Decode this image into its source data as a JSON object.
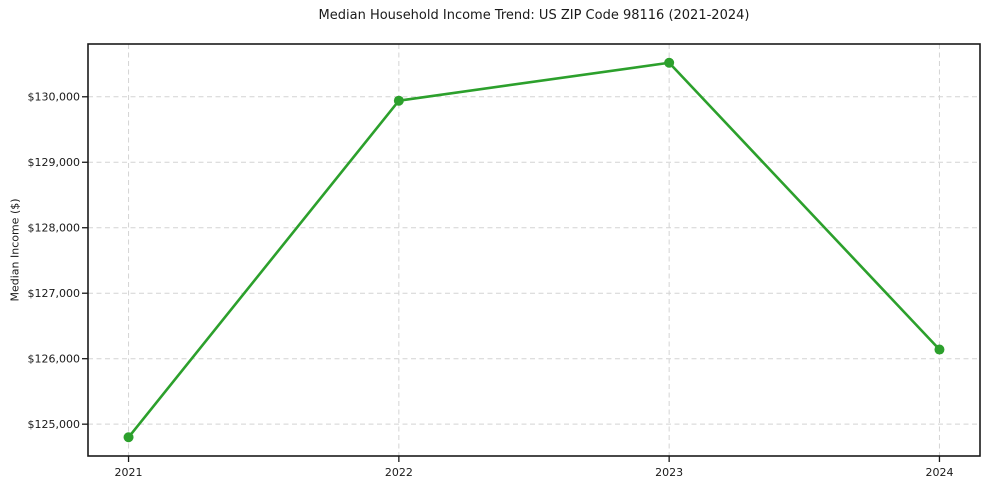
{
  "chart_data": {
    "type": "line",
    "title": "Median Household Income Trend: US ZIP Code 98116 (2021-2024)",
    "xlabel": "",
    "ylabel": "Median Income ($)",
    "x": [
      2021,
      2022,
      2023,
      2024
    ],
    "values": [
      124800,
      129940,
      130520,
      126140
    ],
    "value_labels": [
      "$124,800",
      "$129,940",
      "$130,520",
      "$126,140"
    ],
    "xticks": [
      2021,
      2022,
      2023,
      2024
    ],
    "xtick_labels": [
      "2021",
      "2022",
      "2023",
      "2024"
    ],
    "yticks": [
      125000,
      126000,
      127000,
      128000,
      129000,
      130000
    ],
    "ytick_labels": [
      "$125,000",
      "$126,000",
      "$127,000",
      "$128,000",
      "$129,000",
      "$130,000"
    ],
    "xlim": [
      2020.85,
      2024.15
    ],
    "ylim": [
      124514,
      130806
    ],
    "grid": true,
    "grid_style": "dashed",
    "legend": "none",
    "line_color": "#2ca02c",
    "marker": "circle",
    "grid_color": "#d4d4d4",
    "axis_color": "#1a1a1a",
    "text_color": "#1a1a1a",
    "background_color": "#ffffff"
  }
}
